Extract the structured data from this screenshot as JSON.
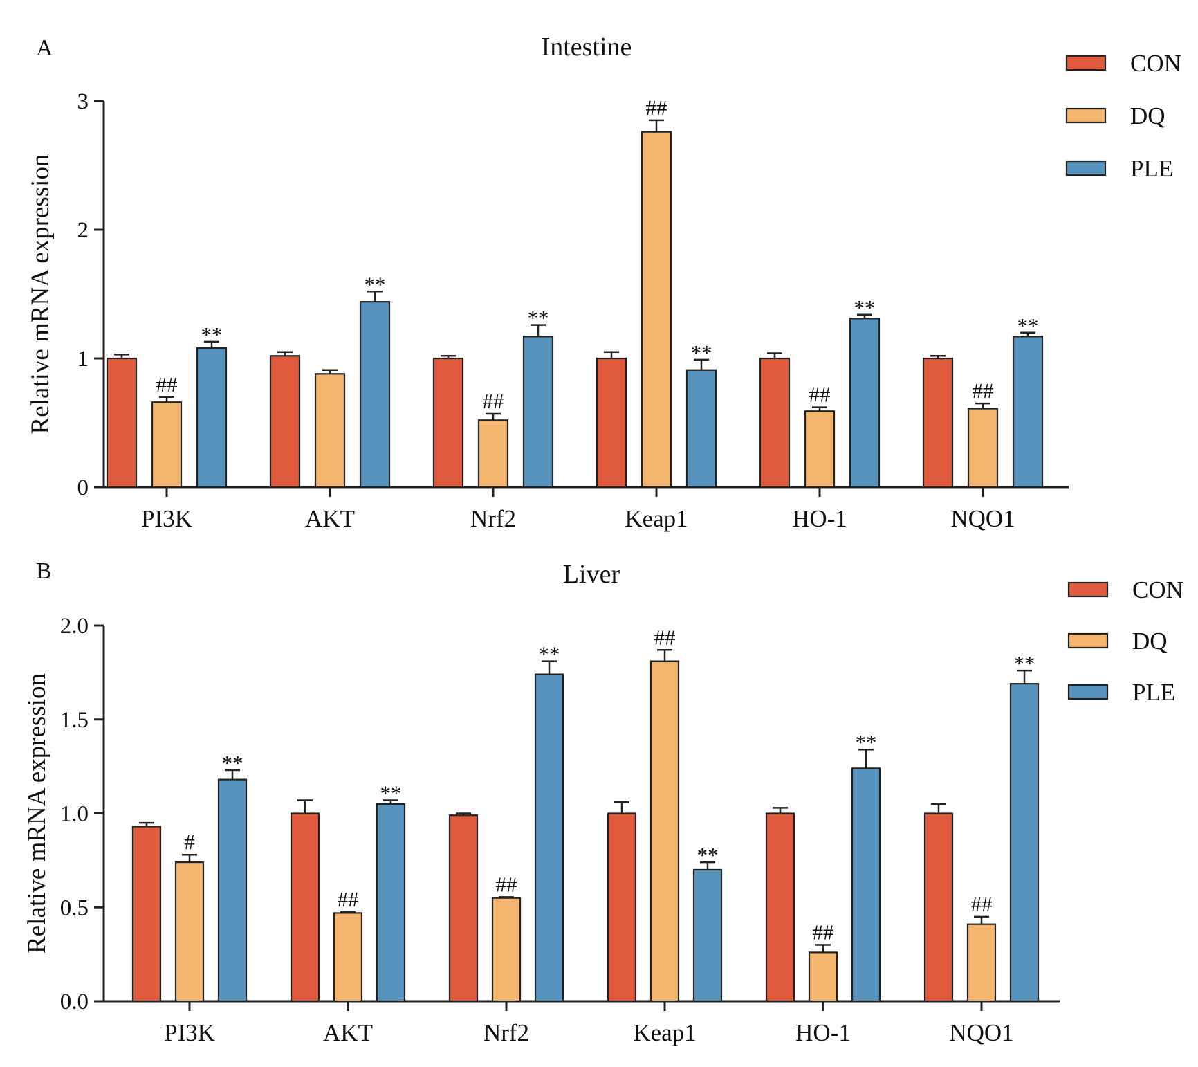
{
  "chart_data": [
    {
      "type": "bar",
      "panel": "A",
      "title": "Intestine",
      "xlabel": "",
      "ylabel": "Relative mRNA expression",
      "ylim": [
        0,
        3
      ],
      "yticks": [
        "0",
        "1",
        "2",
        "3"
      ],
      "categories": [
        "PI3K",
        "AKT",
        "Nrf2",
        "Keap1",
        "HO-1",
        "NQO1"
      ],
      "legend": {
        "placement": "top-right"
      },
      "series": [
        {
          "name": "CON",
          "color": "#e05a3d",
          "values": [
            1.0,
            1.02,
            1.0,
            1.0,
            1.0,
            1.0
          ],
          "errors": [
            0.03,
            0.03,
            0.02,
            0.05,
            0.04,
            0.02
          ],
          "annotations": [
            "",
            "",
            "",
            "",
            "",
            ""
          ]
        },
        {
          "name": "DQ",
          "color": "#f4b56f",
          "values": [
            0.66,
            0.88,
            0.52,
            2.76,
            0.59,
            0.61
          ],
          "errors": [
            0.04,
            0.03,
            0.05,
            0.09,
            0.03,
            0.04
          ],
          "annotations": [
            "##",
            "",
            "##",
            "##",
            "##",
            "##"
          ]
        },
        {
          "name": "PLE",
          "color": "#5893be",
          "values": [
            1.08,
            1.44,
            1.17,
            0.91,
            1.31,
            1.17
          ],
          "errors": [
            0.05,
            0.08,
            0.09,
            0.08,
            0.03,
            0.03
          ],
          "annotations": [
            "**",
            "**",
            "**",
            "**",
            "**",
            "**"
          ]
        }
      ]
    },
    {
      "type": "bar",
      "panel": "B",
      "title": "Liver",
      "xlabel": "",
      "ylabel": "Relative mRNA expression",
      "ylim": [
        0,
        2
      ],
      "yticks": [
        "0.0",
        "0.5",
        "1.0",
        "1.5",
        "2.0"
      ],
      "categories": [
        "PI3K",
        "AKT",
        "Nrf2",
        "Keap1",
        "HO-1",
        "NQO1"
      ],
      "legend": {
        "placement": "top-right"
      },
      "series": [
        {
          "name": "CON",
          "color": "#e05a3d",
          "values": [
            0.93,
            1.0,
            0.99,
            1.0,
            1.0,
            1.0
          ],
          "errors": [
            0.02,
            0.07,
            0.01,
            0.06,
            0.03,
            0.05
          ],
          "annotations": [
            "",
            "",
            "",
            "",
            "",
            ""
          ]
        },
        {
          "name": "DQ",
          "color": "#f4b56f",
          "values": [
            0.74,
            0.47,
            0.55,
            1.81,
            0.26,
            0.41
          ],
          "errors": [
            0.04,
            0.005,
            0.005,
            0.06,
            0.04,
            0.04
          ],
          "annotations": [
            "#",
            "##",
            "##",
            "##",
            "##",
            "##"
          ]
        },
        {
          "name": "PLE",
          "color": "#5893be",
          "values": [
            1.18,
            1.05,
            1.74,
            0.7,
            1.24,
            1.69
          ],
          "errors": [
            0.05,
            0.02,
            0.07,
            0.04,
            0.1,
            0.07
          ],
          "annotations": [
            "**",
            "**",
            "**",
            "**",
            "**",
            "**"
          ]
        }
      ]
    }
  ]
}
